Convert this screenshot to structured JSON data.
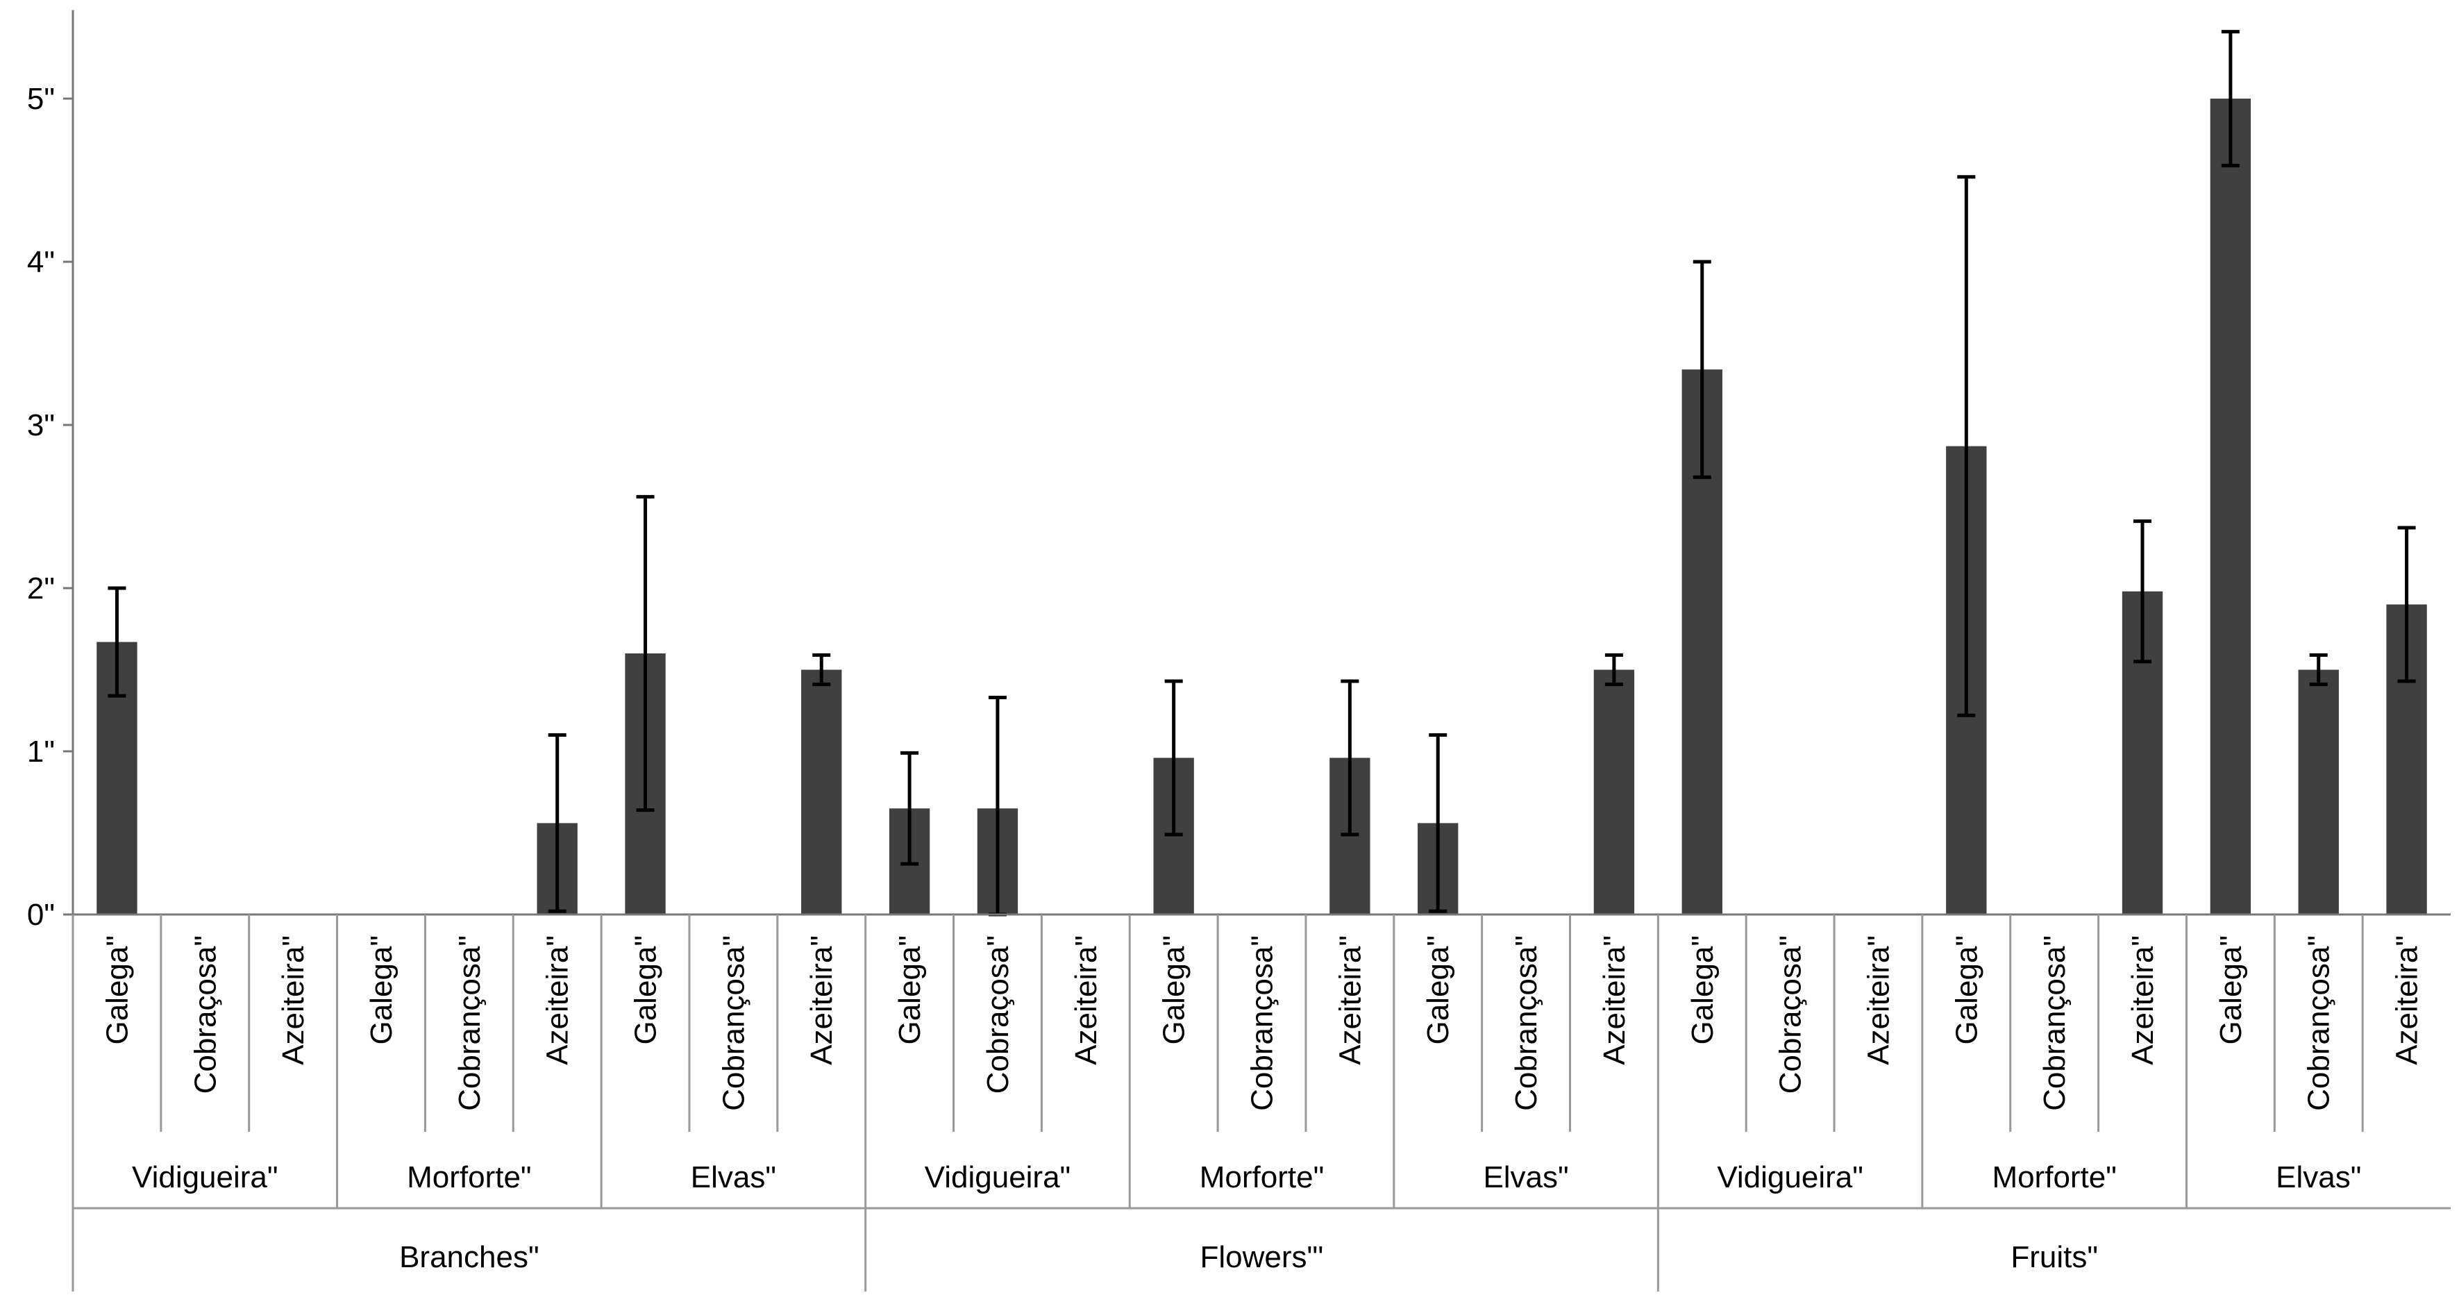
{
  "chart_data": {
    "type": "bar",
    "title": "",
    "xlabel": "",
    "ylabel": "",
    "ylim": [
      0,
      5.5
    ],
    "yticks": [
      {
        "value": 0,
        "label": "0\""
      },
      {
        "value": 1,
        "label": "1\""
      },
      {
        "value": 2,
        "label": "2\""
      },
      {
        "value": 3,
        "label": "3\""
      },
      {
        "value": 4,
        "label": "4\""
      },
      {
        "value": 5,
        "label": "5\""
      }
    ],
    "grid": false,
    "bar_color": "#404040",
    "errorbar_color": "#000000",
    "categories": [
      "Galega\"",
      "Cobraçosa\"",
      "Azeiteira\"",
      "Galega\"",
      "Cobrançosa\"",
      "Azeiteira\"",
      "Galega\"",
      "Cobrançosa\"",
      "Azeiteira\"",
      "Galega\"",
      "Cobraçosa\"",
      "Azeiteira\"",
      "Galega\"",
      "Cobrançosa\"",
      "Azeiteira\"",
      "Galega\"",
      "Cobrançosa\"",
      "Azeiteira\"",
      "Galega\"",
      "Cobraçosa\"",
      "Azeiteira\"",
      "Galega\"",
      "Cobrançosa\"",
      "Azeiteira\"",
      "Galega\"",
      "Cobrançosa\"",
      "Azeiteira\""
    ],
    "values": [
      1.67,
      0,
      0,
      0,
      0,
      0.56,
      1.6,
      0,
      1.5,
      0.65,
      0.65,
      0,
      0.96,
      0,
      0.96,
      0.56,
      0,
      1.5,
      3.34,
      0,
      0,
      2.87,
      0,
      1.98,
      5.0,
      1.5,
      1.9
    ],
    "errors": [
      0.33,
      0,
      0,
      0,
      0,
      0.54,
      0.96,
      0,
      0.09,
      0.34,
      0.68,
      0,
      0.47,
      0,
      0.47,
      0.54,
      0,
      0.09,
      0.66,
      0,
      0,
      1.65,
      0,
      0.43,
      0.41,
      0.09,
      0.47
    ],
    "groups": [
      {
        "label": "Vidigueira\"",
        "span": 3
      },
      {
        "label": "Morforte\"",
        "span": 3
      },
      {
        "label": "Elvas\"",
        "span": 3
      },
      {
        "label": "Vidigueira\"",
        "span": 3
      },
      {
        "label": "Morforte\"",
        "span": 3
      },
      {
        "label": "Elvas\"",
        "span": 3
      },
      {
        "label": "Vidigueira\"",
        "span": 3
      },
      {
        "label": "Morforte\"",
        "span": 3
      },
      {
        "label": "Elvas\"",
        "span": 3
      }
    ],
    "supergroups": [
      {
        "label": "Branches\"",
        "span": 9
      },
      {
        "label": "Flowers\"'",
        "span": 9
      },
      {
        "label": "Fruits\"",
        "span": 9
      }
    ]
  }
}
